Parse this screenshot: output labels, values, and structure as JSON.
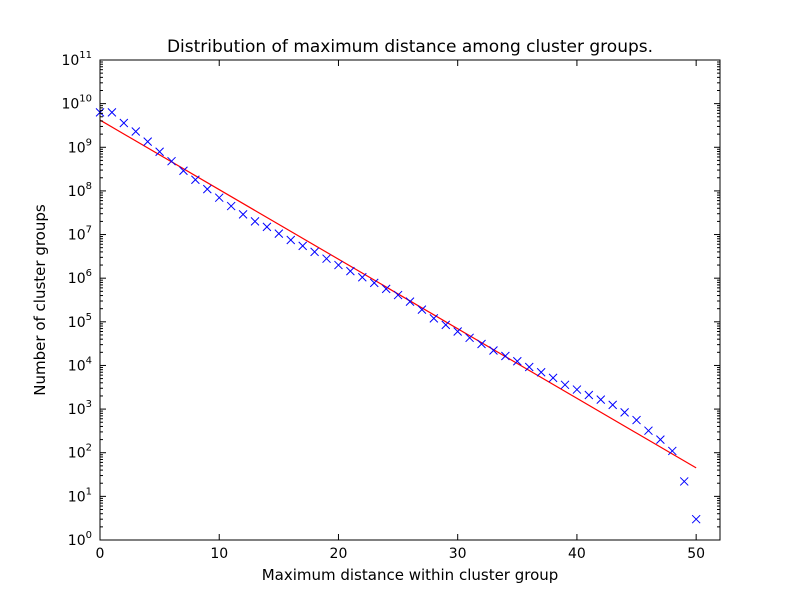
{
  "chart_data": {
    "type": "scatter",
    "title": "Distribution of maximum distance among cluster groups.",
    "xlabel": "Maximum distance within cluster group",
    "ylabel": "Number of cluster groups",
    "xlim": [
      0,
      52
    ],
    "ylim": [
      1,
      100000000000
    ],
    "yscale": "log",
    "grid": false,
    "x_ticks": [
      0,
      10,
      20,
      30,
      40,
      50
    ],
    "y_tick_exponents": [
      0,
      1,
      2,
      3,
      4,
      5,
      6,
      7,
      8,
      9,
      10,
      11
    ],
    "series": [
      {
        "marker": "x",
        "color": "#0000ff",
        "x": [
          0,
          1,
          2,
          3,
          4,
          5,
          6,
          7,
          8,
          9,
          10,
          11,
          12,
          13,
          14,
          15,
          16,
          17,
          18,
          19,
          20,
          21,
          22,
          23,
          24,
          25,
          26,
          27,
          28,
          29,
          30,
          31,
          32,
          33,
          34,
          35,
          36,
          37,
          38,
          39,
          40,
          41,
          42,
          43,
          44,
          45,
          46,
          47,
          48,
          49,
          50
        ],
        "y": [
          6300000000,
          6300000000,
          3600000000,
          2300000000,
          1350000000,
          790000000,
          480000000,
          290000000,
          180000000,
          110000000,
          70000000,
          45000000,
          29000000,
          20000000,
          15000000,
          10500000,
          7500000,
          5500000,
          4000000,
          2800000,
          2000000,
          1450000,
          1050000,
          780000,
          570000,
          410000,
          290000,
          190000,
          120000,
          85000,
          60000,
          43000,
          31000,
          22000,
          16500,
          12500,
          9200,
          7000,
          5200,
          3600,
          2800,
          2100,
          1650,
          1250,
          840,
          560,
          320,
          200,
          110,
          22,
          3
        ]
      },
      {
        "type": "line",
        "color": "#ff0000",
        "x": [
          0,
          50
        ],
        "y": [
          4200000000,
          45
        ]
      }
    ]
  }
}
